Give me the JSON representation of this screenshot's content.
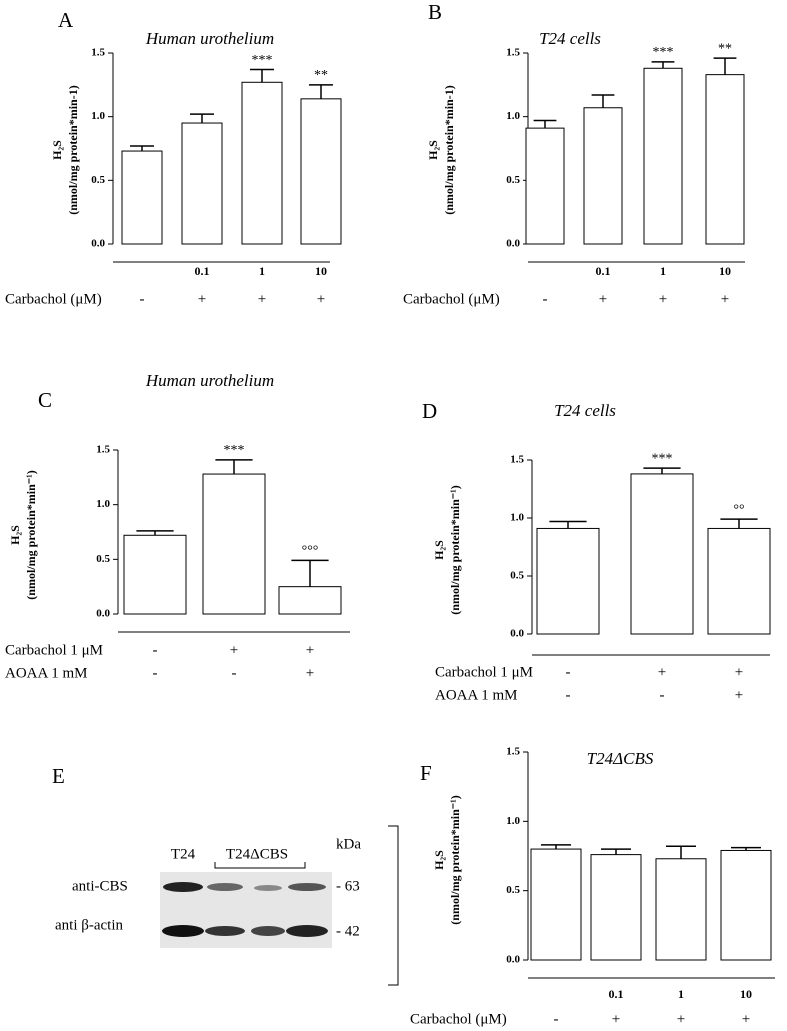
{
  "chart_data": [
    {
      "type": "bar",
      "panel": "A",
      "title": "Human urothelium",
      "ylabel": [
        "H₂S",
        "(nmol/mg protein*min-1)"
      ],
      "categories": [
        null,
        "0.1",
        "1",
        "10"
      ],
      "values": [
        0.73,
        0.95,
        1.27,
        1.14
      ],
      "errors": [
        0.04,
        0.07,
        0.1,
        0.11
      ],
      "annotations": [
        null,
        null,
        "***",
        "**"
      ],
      "treatments": [
        {
          "name": "Carbachol (μM)",
          "signs": [
            "-",
            "+",
            "+",
            "+"
          ]
        }
      ],
      "ylim": [
        0,
        1.5
      ],
      "yticks": [
        {
          "value": 0,
          "label": "0.0"
        },
        {
          "value": 0.5,
          "label": "0.5"
        },
        {
          "value": 1,
          "label": "1.0"
        },
        {
          "value": 1.5,
          "label": "1.5"
        }
      ],
      "color": "#ffffff"
    },
    {
      "type": "bar",
      "panel": "B",
      "title": "T24 cells",
      "ylabel": [
        "H₂S",
        "(nmol/mg protein*min-1)"
      ],
      "categories": [
        null,
        "0.1",
        "1",
        "10"
      ],
      "values": [
        0.91,
        1.07,
        1.38,
        1.33
      ],
      "errors": [
        0.06,
        0.1,
        0.05,
        0.13
      ],
      "annotations": [
        null,
        null,
        "***",
        "**"
      ],
      "treatments": [
        {
          "name": "Carbachol (μM)",
          "signs": [
            "-",
            "+",
            "+",
            "+"
          ]
        }
      ],
      "ylim": [
        0,
        1.5
      ],
      "yticks": [
        {
          "value": 0,
          "label": "0.0"
        },
        {
          "value": 0.5,
          "label": "0.5"
        },
        {
          "value": 1,
          "label": "1.0"
        },
        {
          "value": 1.5,
          "label": "1.5"
        }
      ],
      "color": "#ffffff"
    },
    {
      "type": "bar",
      "panel": "C",
      "title": "Human urothelium",
      "ylabel": [
        "H₂S",
        "(nmol/mg protein*min⁻¹)"
      ],
      "values": [
        0.72,
        1.28,
        0.25
      ],
      "errors": [
        0.04,
        0.13,
        0.24
      ],
      "annotations": [
        null,
        "***",
        "°°°"
      ],
      "treatments": [
        {
          "name": "Carbachol 1 μM",
          "signs": [
            "-",
            "+",
            "+"
          ]
        },
        {
          "name": "AOAA 1 mM",
          "signs": [
            "-",
            "-",
            "+"
          ]
        }
      ],
      "ylim": [
        0,
        1.5
      ],
      "yticks": [
        {
          "value": 0,
          "label": "0.0"
        },
        {
          "value": 0.5,
          "label": "0.5"
        },
        {
          "value": 1,
          "label": "1.0"
        },
        {
          "value": 1.5,
          "label": "1.5"
        }
      ],
      "color": "#ffffff"
    },
    {
      "type": "bar",
      "panel": "D",
      "title": "T24 cells",
      "ylabel": [
        "H₂S",
        "(nmol/mg protein*min⁻¹)"
      ],
      "values": [
        0.91,
        1.38,
        0.91
      ],
      "errors": [
        0.06,
        0.05,
        0.08
      ],
      "annotations": [
        null,
        "***",
        "°°"
      ],
      "treatments": [
        {
          "name": "Carbachol 1 μM",
          "signs": [
            "-",
            "+",
            "+"
          ]
        },
        {
          "name": "AOAA 1 mM",
          "signs": [
            "-",
            "-",
            "+"
          ]
        }
      ],
      "ylim": [
        0,
        1.5
      ],
      "yticks": [
        {
          "value": 0,
          "label": "0.0"
        },
        {
          "value": 0.5,
          "label": "0.5"
        },
        {
          "value": 1,
          "label": "1.0"
        },
        {
          "value": 1.5,
          "label": "1.5"
        }
      ],
      "color": "#ffffff"
    },
    {
      "type": "bar",
      "panel": "F",
      "title": "T24ΔCBS",
      "ylabel": [
        "H₂S",
        "(nmol/mg protein*min⁻¹)"
      ],
      "categories": [
        null,
        "0.1",
        "1",
        "10"
      ],
      "values": [
        0.8,
        0.76,
        0.73,
        0.79
      ],
      "errors": [
        0.03,
        0.04,
        0.09,
        0.02
      ],
      "annotations": [
        null,
        null,
        null,
        null
      ],
      "treatments": [
        {
          "name": "Carbachol (μM)",
          "signs": [
            "-",
            "+",
            "+",
            "+"
          ]
        }
      ],
      "ylim": [
        0,
        1.5
      ],
      "yticks": [
        {
          "value": 0,
          "label": "0.0"
        },
        {
          "value": 0.5,
          "label": "0.5"
        },
        {
          "value": 1,
          "label": "1.0"
        },
        {
          "value": 1.5,
          "label": "1.5"
        }
      ],
      "color": "#ffffff"
    }
  ],
  "blot": {
    "panel": "E",
    "lanes": [
      "T24",
      "T24ΔCBS"
    ],
    "unit": "kDa",
    "rows": [
      {
        "name": "anti-CBS",
        "marker": "- 63"
      },
      {
        "name": "anti β-actin",
        "marker": "- 42"
      }
    ]
  }
}
